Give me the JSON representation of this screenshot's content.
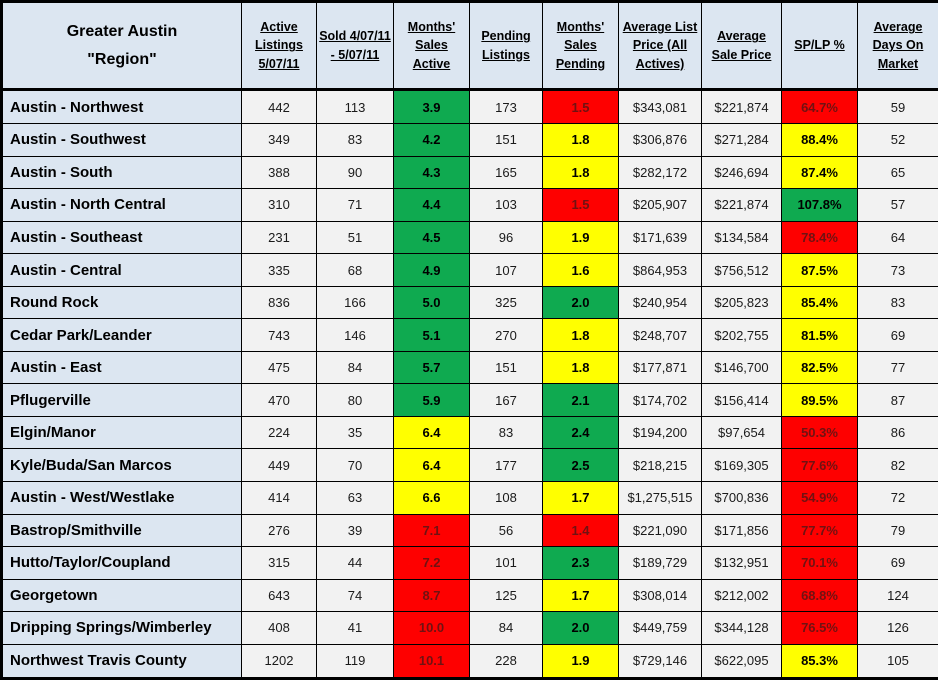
{
  "header": {
    "region_line1": "Greater Austin",
    "region_line2": "\"Region\"",
    "cols": [
      "Active Listings 5/07/11",
      "Sold 4/07/11 - 5/07/11",
      "Months' Sales Active",
      "Pending Listings",
      "Months' Sales Pending",
      "Average List Price (All Actives)",
      "Average Sale Price",
      "SP/LP %",
      "Average Days On Market"
    ]
  },
  "rows": [
    {
      "region": "Austin - Northwest",
      "cells": [
        {
          "v": "442"
        },
        {
          "v": "113"
        },
        {
          "v": "3.9",
          "c": "green"
        },
        {
          "v": "173"
        },
        {
          "v": "1.5",
          "c": "red"
        },
        {
          "v": "$343,081"
        },
        {
          "v": "$221,874"
        },
        {
          "v": "64.7%",
          "c": "red"
        },
        {
          "v": "59"
        }
      ]
    },
    {
      "region": "Austin - Southwest",
      "cells": [
        {
          "v": "349"
        },
        {
          "v": "83"
        },
        {
          "v": "4.2",
          "c": "green"
        },
        {
          "v": "151"
        },
        {
          "v": "1.8",
          "c": "yellow"
        },
        {
          "v": "$306,876"
        },
        {
          "v": "$271,284"
        },
        {
          "v": "88.4%",
          "c": "yellow"
        },
        {
          "v": "52"
        }
      ]
    },
    {
      "region": "Austin - South",
      "cells": [
        {
          "v": "388"
        },
        {
          "v": "90"
        },
        {
          "v": "4.3",
          "c": "green"
        },
        {
          "v": "165"
        },
        {
          "v": "1.8",
          "c": "yellow"
        },
        {
          "v": "$282,172"
        },
        {
          "v": "$246,694"
        },
        {
          "v": "87.4%",
          "c": "yellow"
        },
        {
          "v": "65"
        }
      ]
    },
    {
      "region": "Austin - North Central",
      "cells": [
        {
          "v": "310"
        },
        {
          "v": "71"
        },
        {
          "v": "4.4",
          "c": "green"
        },
        {
          "v": "103"
        },
        {
          "v": "1.5",
          "c": "red"
        },
        {
          "v": "$205,907"
        },
        {
          "v": "$221,874"
        },
        {
          "v": "107.8%",
          "c": "green"
        },
        {
          "v": "57"
        }
      ]
    },
    {
      "region": "Austin - Southeast",
      "cells": [
        {
          "v": "231"
        },
        {
          "v": "51"
        },
        {
          "v": "4.5",
          "c": "green"
        },
        {
          "v": "96"
        },
        {
          "v": "1.9",
          "c": "yellow"
        },
        {
          "v": "$171,639"
        },
        {
          "v": "$134,584"
        },
        {
          "v": "78.4%",
          "c": "red"
        },
        {
          "v": "64"
        }
      ]
    },
    {
      "region": "Austin - Central",
      "cells": [
        {
          "v": "335"
        },
        {
          "v": "68"
        },
        {
          "v": "4.9",
          "c": "green"
        },
        {
          "v": "107"
        },
        {
          "v": "1.6",
          "c": "yellow"
        },
        {
          "v": "$864,953"
        },
        {
          "v": "$756,512"
        },
        {
          "v": "87.5%",
          "c": "yellow"
        },
        {
          "v": "73"
        }
      ]
    },
    {
      "region": "Round Rock",
      "cells": [
        {
          "v": "836"
        },
        {
          "v": "166"
        },
        {
          "v": "5.0",
          "c": "green"
        },
        {
          "v": "325"
        },
        {
          "v": "2.0",
          "c": "green"
        },
        {
          "v": "$240,954"
        },
        {
          "v": "$205,823"
        },
        {
          "v": "85.4%",
          "c": "yellow"
        },
        {
          "v": "83"
        }
      ]
    },
    {
      "region": "Cedar Park/Leander",
      "cells": [
        {
          "v": "743"
        },
        {
          "v": "146"
        },
        {
          "v": "5.1",
          "c": "green"
        },
        {
          "v": "270"
        },
        {
          "v": "1.8",
          "c": "yellow"
        },
        {
          "v": "$248,707"
        },
        {
          "v": "$202,755"
        },
        {
          "v": "81.5%",
          "c": "yellow"
        },
        {
          "v": "69"
        }
      ]
    },
    {
      "region": "Austin - East",
      "cells": [
        {
          "v": "475"
        },
        {
          "v": "84"
        },
        {
          "v": "5.7",
          "c": "green"
        },
        {
          "v": "151"
        },
        {
          "v": "1.8",
          "c": "yellow"
        },
        {
          "v": "$177,871"
        },
        {
          "v": "$146,700"
        },
        {
          "v": "82.5%",
          "c": "yellow"
        },
        {
          "v": "77"
        }
      ]
    },
    {
      "region": "Pflugerville",
      "cells": [
        {
          "v": "470"
        },
        {
          "v": "80"
        },
        {
          "v": "5.9",
          "c": "green"
        },
        {
          "v": "167"
        },
        {
          "v": "2.1",
          "c": "green"
        },
        {
          "v": "$174,702"
        },
        {
          "v": "$156,414"
        },
        {
          "v": "89.5%",
          "c": "yellow"
        },
        {
          "v": "87"
        }
      ]
    },
    {
      "region": "Elgin/Manor",
      "cells": [
        {
          "v": "224"
        },
        {
          "v": "35"
        },
        {
          "v": "6.4",
          "c": "yellow"
        },
        {
          "v": "83"
        },
        {
          "v": "2.4",
          "c": "green"
        },
        {
          "v": "$194,200"
        },
        {
          "v": "$97,654"
        },
        {
          "v": "50.3%",
          "c": "red"
        },
        {
          "v": "86"
        }
      ]
    },
    {
      "region": "Kyle/Buda/San Marcos",
      "cells": [
        {
          "v": "449"
        },
        {
          "v": "70"
        },
        {
          "v": "6.4",
          "c": "yellow"
        },
        {
          "v": "177"
        },
        {
          "v": "2.5",
          "c": "green"
        },
        {
          "v": "$218,215"
        },
        {
          "v": "$169,305"
        },
        {
          "v": "77.6%",
          "c": "red"
        },
        {
          "v": "82"
        }
      ]
    },
    {
      "region": "Austin - West/Westlake",
      "cells": [
        {
          "v": "414"
        },
        {
          "v": "63"
        },
        {
          "v": "6.6",
          "c": "yellow"
        },
        {
          "v": "108"
        },
        {
          "v": "1.7",
          "c": "yellow"
        },
        {
          "v": "$1,275,515"
        },
        {
          "v": "$700,836"
        },
        {
          "v": "54.9%",
          "c": "red"
        },
        {
          "v": "72"
        }
      ]
    },
    {
      "region": "Bastrop/Smithville",
      "cells": [
        {
          "v": "276"
        },
        {
          "v": "39"
        },
        {
          "v": "7.1",
          "c": "red"
        },
        {
          "v": "56"
        },
        {
          "v": "1.4",
          "c": "red"
        },
        {
          "v": "$221,090"
        },
        {
          "v": "$171,856"
        },
        {
          "v": "77.7%",
          "c": "red"
        },
        {
          "v": "79"
        }
      ]
    },
    {
      "region": "Hutto/Taylor/Coupland",
      "cells": [
        {
          "v": "315"
        },
        {
          "v": "44"
        },
        {
          "v": "7.2",
          "c": "red"
        },
        {
          "v": "101"
        },
        {
          "v": "2.3",
          "c": "green"
        },
        {
          "v": "$189,729"
        },
        {
          "v": "$132,951"
        },
        {
          "v": "70.1%",
          "c": "red"
        },
        {
          "v": "69"
        }
      ]
    },
    {
      "region": "Georgetown",
      "cells": [
        {
          "v": "643"
        },
        {
          "v": "74"
        },
        {
          "v": "8.7",
          "c": "red"
        },
        {
          "v": "125"
        },
        {
          "v": "1.7",
          "c": "yellow"
        },
        {
          "v": "$308,014"
        },
        {
          "v": "$212,002"
        },
        {
          "v": "68.8%",
          "c": "red"
        },
        {
          "v": "124"
        }
      ]
    },
    {
      "region": "Dripping Springs/Wimberley",
      "cells": [
        {
          "v": "408"
        },
        {
          "v": "41"
        },
        {
          "v": "10.0",
          "c": "red"
        },
        {
          "v": "84"
        },
        {
          "v": "2.0",
          "c": "green"
        },
        {
          "v": "$449,759"
        },
        {
          "v": "$344,128"
        },
        {
          "v": "76.5%",
          "c": "red"
        },
        {
          "v": "126"
        }
      ]
    },
    {
      "region": "Northwest Travis County",
      "cells": [
        {
          "v": "1202"
        },
        {
          "v": "119"
        },
        {
          "v": "10.1",
          "c": "red"
        },
        {
          "v": "228"
        },
        {
          "v": "1.9",
          "c": "yellow"
        },
        {
          "v": "$729,146"
        },
        {
          "v": "$622,095"
        },
        {
          "v": "85.3%",
          "c": "yellow"
        },
        {
          "v": "105"
        }
      ]
    }
  ],
  "colors": {
    "green": "#0FAA50",
    "yellow": "#FFFF00",
    "red": "#FE0000",
    "red_text": "#701212",
    "header_bg": "#DCE6F1",
    "cell_bg": "#F2F2F2",
    "border": "#000000"
  }
}
